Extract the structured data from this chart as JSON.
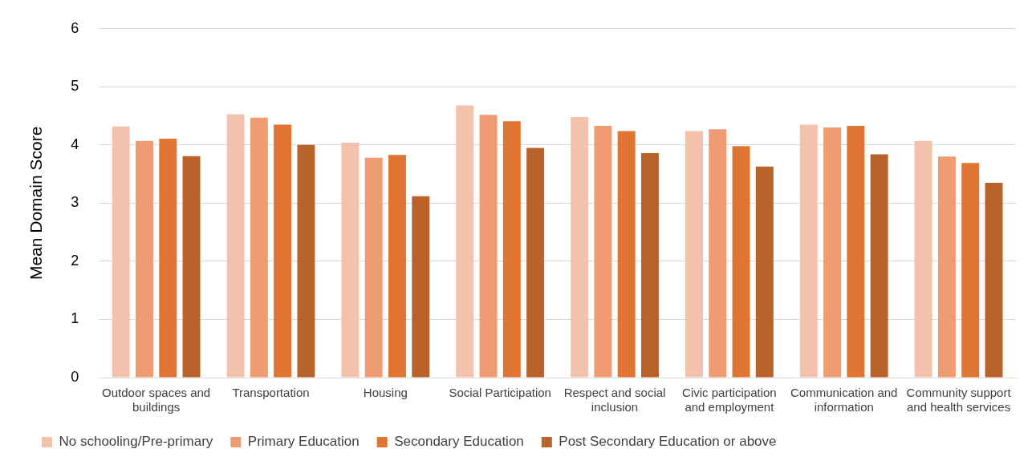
{
  "chart_data": {
    "type": "bar",
    "ylabel": "Mean Domain Score",
    "categories": [
      "Outdoor spaces and buildings",
      "Transportation",
      "Housing",
      "Social Participation",
      "Respect and social inclusion",
      "Civic participation and employment",
      "Communication and information",
      "Community support and health services"
    ],
    "series": [
      {
        "name": "No schooling/Pre-primary",
        "color": "#f4c1ad",
        "values": [
          4.32,
          4.53,
          4.04,
          4.68,
          4.48,
          4.24,
          4.35,
          4.07
        ]
      },
      {
        "name": "Primary Education",
        "color": "#f09c72",
        "values": [
          4.07,
          4.47,
          3.78,
          4.52,
          4.33,
          4.27,
          4.3,
          3.8
        ]
      },
      {
        "name": "Secondary Education",
        "color": "#e07433",
        "values": [
          4.11,
          4.35,
          3.83,
          4.41,
          4.24,
          3.98,
          4.33,
          3.69
        ]
      },
      {
        "name": "Post Secondary Education or above",
        "color": "#b9622a",
        "values": [
          3.81,
          4.0,
          3.12,
          3.95,
          3.86,
          3.63,
          3.84,
          3.35
        ]
      }
    ],
    "ylim": [
      0,
      6
    ],
    "yticks": [
      0,
      1,
      2,
      3,
      4,
      5,
      6
    ],
    "grid": "y",
    "legend": "bottom"
  }
}
